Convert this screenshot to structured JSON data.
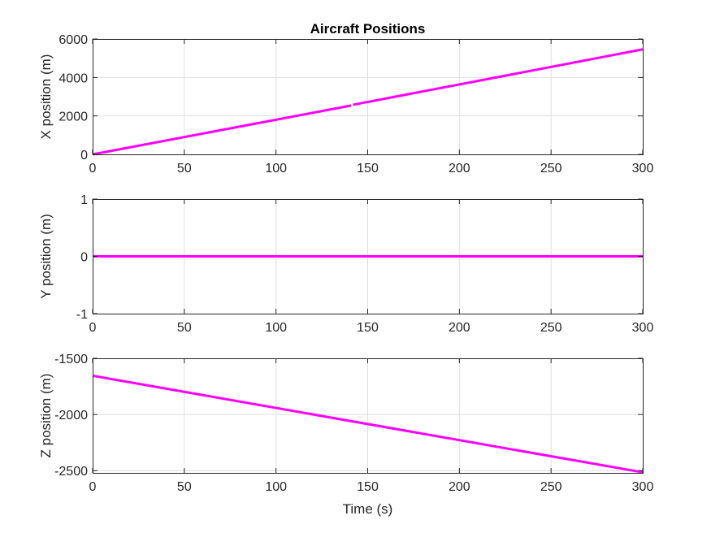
{
  "chart_data": [
    {
      "type": "line",
      "title": "Aircraft Positions",
      "xlabel": "",
      "ylabel": "X position (m)",
      "xlim": [
        0,
        300
      ],
      "ylim": [
        0,
        6000
      ],
      "xticks": [
        0,
        50,
        100,
        150,
        200,
        250,
        300
      ],
      "yticks": [
        0,
        2000,
        4000,
        6000
      ],
      "grid": true,
      "series": [
        {
          "color": "#ff00ff",
          "x": [
            0,
            141
          ],
          "y": [
            0,
            2540
          ]
        },
        {
          "color": "#ff00ff",
          "x": [
            142,
            300
          ],
          "y": [
            2580,
            5460
          ]
        }
      ]
    },
    {
      "type": "line",
      "title": "",
      "xlabel": "",
      "ylabel": "Y position (m)",
      "xlim": [
        0,
        300
      ],
      "ylim": [
        -1,
        1
      ],
      "xticks": [
        0,
        50,
        100,
        150,
        200,
        250,
        300
      ],
      "yticks": [
        -1,
        0,
        1
      ],
      "grid": true,
      "series": [
        {
          "color": "#ff00ff",
          "x": [
            0,
            300
          ],
          "y": [
            0,
            0
          ]
        }
      ]
    },
    {
      "type": "line",
      "title": "",
      "xlabel": "Time (s)",
      "ylabel": "Z position (m)",
      "xlim": [
        0,
        300
      ],
      "ylim": [
        -2520,
        -1500
      ],
      "xticks": [
        0,
        50,
        100,
        150,
        200,
        250,
        300
      ],
      "yticks": [
        -2500,
        -2000,
        -1500
      ],
      "grid": true,
      "series": [
        {
          "color": "#ff00ff",
          "x": [
            0,
            300
          ],
          "y": [
            -1655,
            -2515
          ]
        }
      ]
    }
  ]
}
